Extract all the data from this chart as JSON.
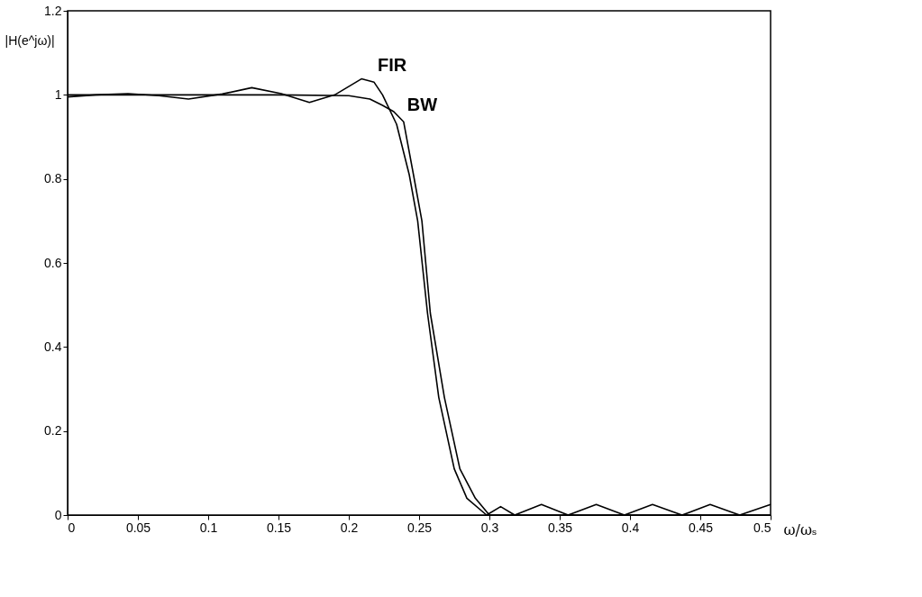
{
  "chart_data": {
    "type": "line",
    "xlabel": "ω/ωₛ",
    "ylabel": "|H(e^jω)|",
    "xlim": [
      0,
      0.5
    ],
    "xticks": [
      0,
      0.05,
      0.1,
      0.15,
      0.2,
      0.25,
      0.3,
      0.35,
      0.4,
      0.45,
      0.5
    ],
    "ylim": [
      0,
      1.2
    ],
    "yticks": [
      0,
      0.2,
      0.4,
      0.6,
      0.8,
      1,
      1.2
    ],
    "grid": false,
    "legend": false,
    "marker": "none",
    "line_style": "solid",
    "annotations": [
      {
        "text": "FIR",
        "x": 0.218,
        "y": 1.03
      },
      {
        "text": "BW",
        "x": 0.239,
        "y": 0.936
      }
    ],
    "series": [
      {
        "color": "#000000",
        "x": [
          0,
          0.02,
          0.043,
          0.065,
          0.086,
          0.11,
          0.131,
          0.152,
          0.172,
          0.19,
          0.209,
          0.218,
          0.224,
          0.234,
          0.243,
          0.249,
          0.256,
          0.264,
          0.275,
          0.284,
          0.298,
          0.308,
          0.318,
          0.337,
          0.356,
          0.376,
          0.396,
          0.416,
          0.437,
          0.457,
          0.478,
          0.5
        ],
        "values": [
          0.995,
          1.0,
          1.003,
          0.998,
          0.99,
          1.002,
          1.017,
          1.003,
          0.982,
          1.0,
          1.038,
          1.03,
          1.0,
          0.93,
          0.81,
          0.7,
          0.48,
          0.28,
          0.11,
          0.04,
          0.0,
          0.02,
          0.0,
          0.025,
          0.0,
          0.025,
          0.0,
          0.025,
          0.0,
          0.025,
          0.0,
          0.025
        ]
      },
      {
        "color": "#000000",
        "x": [
          0,
          0.05,
          0.1,
          0.15,
          0.2,
          0.215,
          0.224,
          0.232,
          0.239,
          0.246,
          0.252,
          0.258,
          0.268,
          0.279,
          0.29,
          0.3,
          0.35,
          0.4,
          0.45,
          0.5
        ],
        "values": [
          1,
          1,
          1,
          1,
          0.998,
          0.99,
          0.975,
          0.96,
          0.936,
          0.81,
          0.7,
          0.48,
          0.28,
          0.11,
          0.04,
          0.0,
          0,
          0,
          0,
          0
        ]
      }
    ]
  }
}
